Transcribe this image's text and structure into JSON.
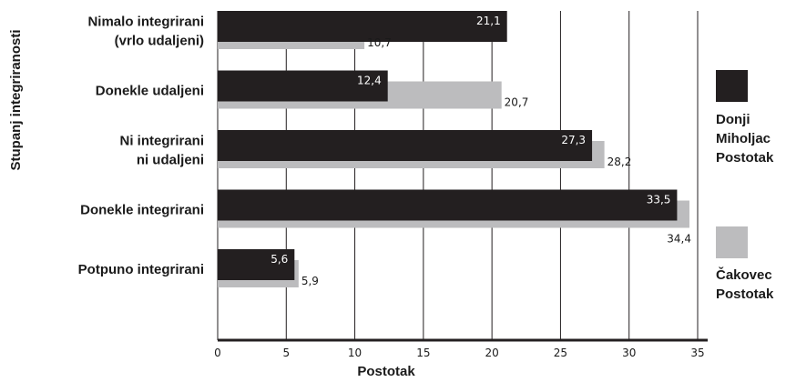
{
  "chart_data": {
    "type": "bar",
    "orientation": "horizontal",
    "categories": [
      [
        "Nimalo integrirani",
        "(vrlo udaljeni)"
      ],
      [
        "Donekle udaljeni"
      ],
      [
        "Ni integrirani",
        "ni udaljeni"
      ],
      [
        "Donekle integrirani"
      ],
      [
        "Potpuno integrirani"
      ]
    ],
    "series": [
      {
        "name": [
          "Donji",
          "Miholjac",
          "Postotak"
        ],
        "color": "#231f20",
        "values": [
          21.1,
          12.4,
          27.3,
          33.5,
          5.6
        ],
        "labels": [
          "21,1",
          "12,4",
          "27,3",
          "33,5",
          "5,6"
        ]
      },
      {
        "name": [
          "Čakovec",
          "Postotak"
        ],
        "color": "#bcbcbe",
        "values": [
          10.7,
          20.7,
          28.2,
          34.4,
          5.9
        ],
        "labels": [
          "10,7",
          "20,7",
          "28,2",
          "34,4",
          "5,9"
        ]
      }
    ],
    "xlabel": "Postotak",
    "ylabel": "Stupanj integriranosti",
    "xlim": [
      0,
      35
    ],
    "xticks": [
      0,
      5,
      10,
      15,
      20,
      25,
      30,
      35
    ],
    "grid": "vertical",
    "legend": "right"
  }
}
